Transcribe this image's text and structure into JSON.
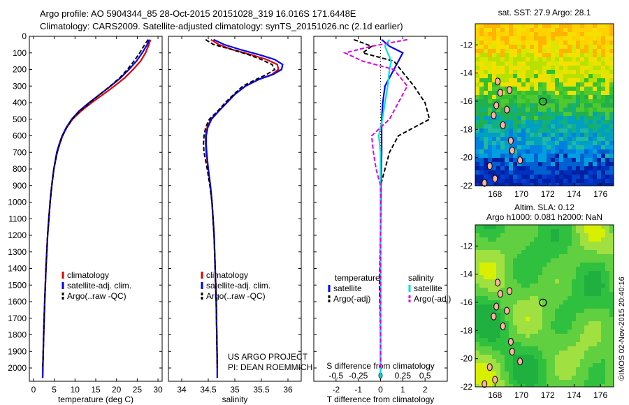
{
  "header": {
    "line1": "Argo profile: AO 5904344_85 28-Oct-2015 20151028_319 16.016S 171.6448E",
    "line2": "Climatology: CARS2009. Satellite-adjusted climatology: synTS_20151026.nc (2.1d earlier)"
  },
  "credits": {
    "project": "US ARGO PROJECT",
    "pi": "PI: DEAN ROEMMICH",
    "imos": "©IMOS 02-Nov-2015 20:40:16"
  },
  "colors": {
    "climatology": "#e00000",
    "satellite_adj": "#0000ff",
    "argo": "#000000",
    "sal_satellite": "#00e0e0",
    "sal_argo": "#e000e0"
  },
  "chart_data": [
    {
      "type": "line",
      "name": "temperature-profile",
      "xlabel": "temperature (deg C)",
      "ylabel": "",
      "xlim": [
        -1,
        31
      ],
      "ylim": [
        2080,
        0
      ],
      "xticks": [
        0,
        5,
        10,
        15,
        20,
        25,
        30
      ],
      "yticks": [
        0,
        100,
        200,
        300,
        400,
        500,
        600,
        700,
        800,
        900,
        1000,
        1100,
        1200,
        1300,
        1400,
        1500,
        1600,
        1700,
        1800,
        1900,
        2000
      ],
      "legend": [
        "climatology",
        "satellite-adj. clim.",
        "Argo(..raw -QC)"
      ],
      "series": [
        {
          "name": "climatology",
          "depth": [
            20,
            50,
            100,
            150,
            200,
            250,
            300,
            350,
            400,
            450,
            500,
            550,
            600,
            650,
            700,
            800,
            900,
            1000,
            1200,
            1400,
            1600,
            1800,
            2000,
            2060
          ],
          "values": [
            28.2,
            27.8,
            27.0,
            25.8,
            24.0,
            22.0,
            19.5,
            16.8,
            14.0,
            11.5,
            9.4,
            8.0,
            7.0,
            6.3,
            5.7,
            4.9,
            4.4,
            4.0,
            3.4,
            3.0,
            2.7,
            2.45,
            2.25,
            2.2
          ]
        },
        {
          "name": "satellite-adj. clim.",
          "depth": [
            20,
            50,
            100,
            150,
            200,
            250,
            300,
            350,
            400,
            450,
            500,
            550,
            600,
            650,
            700,
            800,
            900,
            1000,
            1200,
            1400,
            1600,
            1800,
            2000,
            2060
          ],
          "values": [
            27.9,
            27.4,
            26.2,
            24.8,
            23.0,
            21.0,
            18.6,
            16.0,
            13.4,
            11.0,
            9.2,
            7.9,
            6.9,
            6.2,
            5.6,
            4.9,
            4.4,
            4.0,
            3.4,
            3.0,
            2.7,
            2.45,
            2.25,
            2.2
          ]
        },
        {
          "name": "Argo(..raw -QC)",
          "depth": [
            20,
            50,
            100,
            150,
            200,
            250,
            300,
            350,
            400,
            450,
            500,
            550,
            600,
            650,
            700,
            800,
            900,
            1000,
            1200,
            1400,
            1600,
            1800,
            2000
          ],
          "values": [
            27.6,
            26.8,
            25.6,
            24.2,
            22.6,
            20.8,
            18.5,
            16.0,
            13.6,
            11.2,
            9.3,
            8.0,
            7.0,
            6.3,
            5.7,
            4.9,
            4.4,
            4.0,
            3.4,
            3.0,
            2.7,
            2.45,
            2.25
          ]
        }
      ]
    },
    {
      "type": "line",
      "name": "salinity-profile",
      "xlabel": "salinity",
      "xlim": [
        33.75,
        36.25
      ],
      "ylim": [
        2080,
        0
      ],
      "xticks": [
        34,
        34.5,
        35,
        35.5,
        36
      ],
      "legend": [
        "climatology",
        "satellite-adj. clim.",
        "Argo(..raw -QC)"
      ],
      "series": [
        {
          "name": "climatology",
          "depth": [
            20,
            50,
            80,
            110,
            140,
            170,
            200,
            230,
            260,
            300,
            350,
            400,
            450,
            500,
            550,
            600,
            650,
            700,
            800,
            900,
            1000,
            1200,
            1400,
            1600,
            1800,
            2000,
            2060
          ],
          "values": [
            34.55,
            34.7,
            34.95,
            35.3,
            35.6,
            35.8,
            35.82,
            35.7,
            35.45,
            35.2,
            35.0,
            34.85,
            34.7,
            34.55,
            34.48,
            34.45,
            34.45,
            34.46,
            34.5,
            34.54,
            34.57,
            34.61,
            34.63,
            34.65,
            34.66,
            34.67,
            34.67
          ]
        },
        {
          "name": "satellite-adj. clim.",
          "depth": [
            20,
            50,
            80,
            110,
            140,
            170,
            200,
            230,
            260,
            300,
            350,
            400,
            450,
            500,
            550,
            600,
            650,
            700,
            800,
            900,
            1000,
            1200,
            1400,
            1600,
            1800,
            2000,
            2060
          ],
          "values": [
            34.6,
            34.8,
            35.1,
            35.45,
            35.75,
            35.9,
            35.88,
            35.72,
            35.45,
            35.2,
            35.0,
            34.85,
            34.7,
            34.56,
            34.49,
            34.46,
            34.46,
            34.47,
            34.5,
            34.54,
            34.57,
            34.61,
            34.63,
            34.65,
            34.66,
            34.67,
            34.67
          ]
        },
        {
          "name": "Argo(..raw -QC)",
          "depth": [
            20,
            50,
            80,
            110,
            140,
            170,
            200,
            230,
            260,
            300,
            350,
            400,
            450,
            500,
            550,
            600,
            650,
            700,
            800,
            900,
            1000,
            1200,
            1400,
            1600,
            1800,
            2000
          ],
          "values": [
            34.45,
            34.6,
            34.95,
            35.25,
            35.5,
            35.7,
            35.75,
            35.6,
            35.4,
            35.15,
            34.98,
            34.82,
            34.68,
            34.52,
            34.45,
            34.42,
            34.41,
            34.42,
            34.48,
            34.53,
            34.57,
            34.61,
            34.63,
            34.65,
            34.66,
            34.67
          ]
        }
      ]
    },
    {
      "type": "line",
      "name": "difference-profile",
      "xlabel": "T difference from climatology",
      "xlabel_top": "S difference from climatology",
      "xlim": [
        -3,
        3
      ],
      "ylim": [
        2080,
        0
      ],
      "xticks": [
        -2,
        -1,
        0,
        1,
        2
      ],
      "xticklabels": [
        "-2",
        "-1",
        "0",
        "1",
        "2"
      ],
      "sticks": [
        -0.5,
        -0.25,
        0,
        0.25,
        0.5
      ],
      "sticklabels": [
        "-0.5",
        "-0.25",
        "0",
        "0.25",
        "0.5"
      ],
      "legend_titles": [
        "temperature",
        "salinity"
      ],
      "legend": [
        "satellite",
        "Argo(-adj)",
        "satellite",
        "Argo(-adj)"
      ],
      "series": [
        {
          "name": "T satellite",
          "var": "temperature",
          "depth": [
            20,
            60,
            100,
            150,
            200,
            300,
            400,
            500,
            700,
            900,
            1200,
            1500,
            1800,
            2060
          ],
          "values": [
            0.05,
            0.4,
            1.0,
            0.8,
            0.6,
            0.2,
            0.1,
            0.05,
            0.05,
            0.02,
            0.0,
            0.0,
            0.0,
            0.0
          ]
        },
        {
          "name": "T Argo(-adj)",
          "var": "temperature",
          "depth": [
            20,
            60,
            100,
            150,
            200,
            300,
            400,
            500,
            600,
            700,
            900,
            1200,
            1500,
            1800,
            2000
          ],
          "values": [
            -1.2,
            -0.4,
            -0.8,
            0.6,
            0.9,
            1.5,
            2.0,
            2.2,
            0.8,
            0.4,
            0.0,
            0.0,
            -0.05,
            0.0,
            0.0
          ]
        },
        {
          "name": "S satellite",
          "var": "salinity",
          "depth": [
            20,
            60,
            100,
            150,
            200,
            300,
            400,
            500,
            600,
            700,
            900,
            1200,
            1500,
            1800,
            2060
          ],
          "values": [
            0.1,
            0.05,
            0.08,
            0.12,
            0.1,
            0.08,
            0.05,
            0.02,
            -0.02,
            0.0,
            0.0,
            0.0,
            0.0,
            0.0,
            0.0
          ]
        },
        {
          "name": "S Argo(-adj)",
          "var": "salinity",
          "depth": [
            20,
            60,
            100,
            150,
            200,
            300,
            400,
            500,
            600,
            700,
            800,
            900,
            1200,
            1500,
            1800,
            2000
          ],
          "values": [
            0.3,
            -0.1,
            -0.4,
            -0.2,
            0.15,
            0.3,
            0.2,
            0.1,
            -0.1,
            -0.08,
            -0.05,
            0.0,
            0.0,
            0.0,
            0.0,
            0.0
          ]
        }
      ]
    },
    {
      "type": "heatmap",
      "name": "sst-map",
      "title": "sat. SST: 27.9  Argo: 28.1",
      "xlim": [
        166.5,
        177
      ],
      "ylim": [
        -22,
        -10.5
      ],
      "xticks": [
        168,
        170,
        172,
        174,
        176
      ],
      "yticks": [
        -12,
        -14,
        -16,
        -18,
        -20,
        -22
      ],
      "marker": {
        "lon": 171.64,
        "lat": -16.02
      }
    },
    {
      "type": "heatmap",
      "name": "sla-map",
      "title": "Altim. SLA: 0.12",
      "subtitle": "Argo h1000: 0.081  h2000: NaN",
      "xlim": [
        166.5,
        177
      ],
      "ylim": [
        -22,
        -10.5
      ],
      "xticks": [
        168,
        170,
        172,
        174,
        176
      ],
      "yticks": [
        -12,
        -14,
        -16,
        -18,
        -20,
        -22
      ],
      "marker": {
        "lon": 171.64,
        "lat": -16.02
      }
    }
  ]
}
